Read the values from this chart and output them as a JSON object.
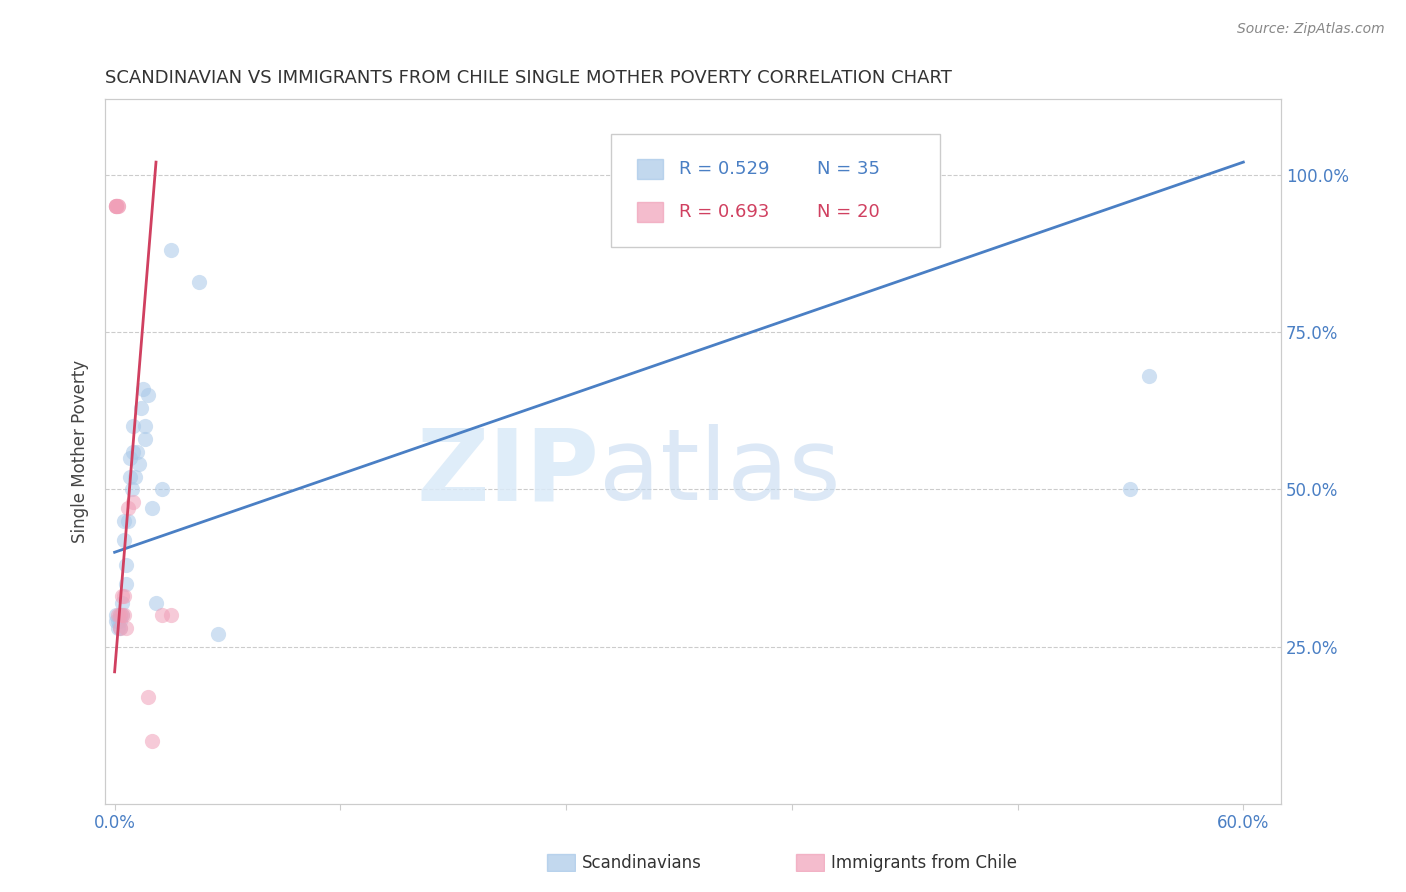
{
  "title": "SCANDINAVIAN VS IMMIGRANTS FROM CHILE SINGLE MOTHER POVERTY CORRELATION CHART",
  "source": "Source: ZipAtlas.com",
  "ylabel": "Single Mother Poverty",
  "legend_blue_r": "R = 0.529",
  "legend_blue_n": "N = 35",
  "legend_pink_r": "R = 0.693",
  "legend_pink_n": "N = 20",
  "blue_color": "#a8c8e8",
  "pink_color": "#f0a0b8",
  "blue_line_color": "#4a7fc4",
  "pink_line_color": "#d04060",
  "watermark_zip": "ZIP",
  "watermark_atlas": "atlas",
  "scand_x": [
    0.001,
    0.001,
    0.002,
    0.002,
    0.003,
    0.003,
    0.003,
    0.004,
    0.004,
    0.005,
    0.005,
    0.006,
    0.006,
    0.007,
    0.008,
    0.008,
    0.009,
    0.01,
    0.01,
    0.011,
    0.012,
    0.013,
    0.014,
    0.015,
    0.016,
    0.016,
    0.018,
    0.02,
    0.022,
    0.025,
    0.03,
    0.045,
    0.055,
    0.54,
    0.55
  ],
  "scand_y": [
    0.3,
    0.29,
    0.29,
    0.28,
    0.3,
    0.29,
    0.28,
    0.32,
    0.3,
    0.45,
    0.42,
    0.38,
    0.35,
    0.45,
    0.55,
    0.52,
    0.5,
    0.6,
    0.56,
    0.52,
    0.56,
    0.54,
    0.63,
    0.66,
    0.6,
    0.58,
    0.65,
    0.47,
    0.32,
    0.5,
    0.88,
    0.83,
    0.27,
    0.5,
    0.68
  ],
  "chile_x": [
    0.001,
    0.001,
    0.001,
    0.001,
    0.002,
    0.002,
    0.002,
    0.003,
    0.003,
    0.004,
    0.004,
    0.005,
    0.005,
    0.006,
    0.007,
    0.01,
    0.018,
    0.02,
    0.025,
    0.03
  ],
  "chile_y": [
    0.95,
    0.95,
    0.95,
    0.95,
    0.95,
    0.95,
    0.3,
    0.3,
    0.28,
    0.33,
    0.3,
    0.33,
    0.3,
    0.28,
    0.47,
    0.48,
    0.17,
    0.1,
    0.3,
    0.3
  ],
  "blue_line_x": [
    0.0,
    0.6
  ],
  "blue_line_y": [
    0.4,
    1.02
  ],
  "pink_line_x": [
    0.0,
    0.022
  ],
  "pink_line_y": [
    0.21,
    1.02
  ],
  "xlim": [
    -0.005,
    0.62
  ],
  "ylim": [
    0.0,
    1.12
  ],
  "xtick_positions": [
    0.0,
    0.12,
    0.24,
    0.36,
    0.48,
    0.6
  ],
  "xtick_labels": [
    "0.0%",
    "",
    "",
    "",
    "",
    "60.0%"
  ],
  "ytick_vals": [
    0.25,
    0.5,
    0.75,
    1.0
  ],
  "ytick_labels": [
    "25.0%",
    "50.0%",
    "75.0%",
    "100.0%"
  ],
  "grid_color": "#cccccc",
  "spine_color": "#cccccc",
  "tick_color": "#4a7fc4",
  "title_fontsize": 13,
  "source_fontsize": 10,
  "tick_fontsize": 12,
  "ylabel_fontsize": 12,
  "marker_size": 120,
  "marker_alpha": 0.55,
  "line_width": 2.0
}
